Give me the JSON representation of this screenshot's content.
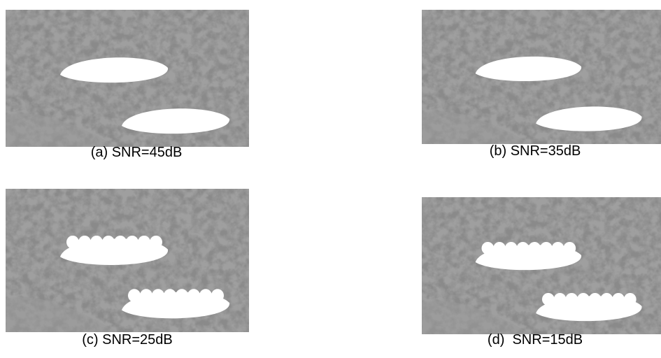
{
  "panels": [
    {
      "caption": "(a) SNR=45dB"
    },
    {
      "caption": "(b) SNR=35dB"
    },
    {
      "caption": "(c) SNR=25dB"
    },
    {
      "caption": "(d)  SNR=15dB"
    }
  ]
}
